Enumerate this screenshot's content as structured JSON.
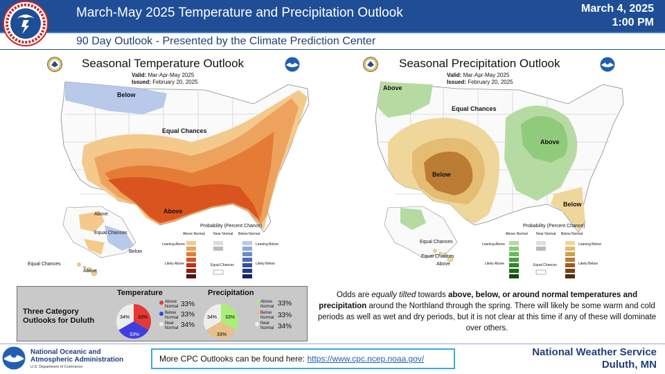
{
  "header": {
    "title": "March-May 2025 Temperature and Precipitation Outlook",
    "date": "March 4, 2025",
    "time": "1:00 PM",
    "subtitle": "90 Day Outlook - Presented by the Climate Prediction Center",
    "logo_icon": "nws-logo-icon"
  },
  "temp_map": {
    "title": "Seasonal Temperature Outlook",
    "valid_label": "Valid:",
    "valid_value": "Mar-Apr-May 2025",
    "issued_label": "Issued:",
    "issued_value": "February 20, 2025",
    "labels": {
      "below": "Below",
      "equal_chances": "Equal Chances",
      "above": "Above",
      "above_ak": "Above",
      "equal_ak": "Equal Chances",
      "below_ak": "Below",
      "equal_hi": "Equal Chances",
      "above_hi": "Above"
    },
    "legend": {
      "title": "Probability (Percent Chance)",
      "above_head": "Above Normal",
      "near_head": "Near Normal",
      "below_head": "Below Normal",
      "leaning_above": "Leaning Above",
      "likely_above": "Likely Above",
      "leaning_below": "Leaning Below",
      "likely_below": "Likely Below",
      "equal_chances": "Equal Chances"
    },
    "colors": {
      "above": [
        "#f4c98c",
        "#eda35e",
        "#e47c35",
        "#d9541f",
        "#b8341a",
        "#8a1f10",
        "#5c0f08"
      ],
      "below": [
        "#b8c9ea",
        "#8ea9dc",
        "#6c8ccd",
        "#4a6dbd",
        "#3450a0",
        "#233885",
        "#15246a"
      ]
    }
  },
  "precip_map": {
    "title": "Seasonal Precipitation Outlook",
    "valid_label": "Valid:",
    "valid_value": "Mar-Apr-May 2025",
    "issued_label": "Issued:",
    "issued_value": "February 20, 2025",
    "labels": {
      "above_nw": "Above",
      "equal_chances": "Equal Chances",
      "above_ne": "Above",
      "below_sw": "Below",
      "below_se": "Below",
      "equal_ak": "Equal Chances",
      "equal_hi": "Equal Chances",
      "above_hi": "Above"
    },
    "legend": {
      "title": "Probability (Percent Chance)",
      "above_head": "Above Normal",
      "near_head": "Near Normal",
      "below_head": "Below Normal",
      "leaning_above": "Leaning Above",
      "likely_above": "Likely Above",
      "leaning_below": "Leaning Below",
      "likely_below": "Likely Below",
      "equal_chances": "Equal Chances"
    },
    "colors": {
      "above": [
        "#b5dba3",
        "#8fcb7b",
        "#6bb95a",
        "#4aa13e",
        "#2f862a",
        "#1c6a1c",
        "#0e4d10"
      ],
      "below": [
        "#efd69a",
        "#e4bc72",
        "#d39e4f",
        "#bb7c34",
        "#9a5e21",
        "#774415",
        "#532c0c"
      ]
    }
  },
  "bottom_box": {
    "title": "Three Category Outlooks for Duluth",
    "temperature": {
      "title": "Temperature",
      "rows": [
        {
          "label": "Above Normal",
          "pct": "33%",
          "color": "#e53935"
        },
        {
          "label": "Below Normal",
          "pct": "33%",
          "color": "#3f3fe0"
        },
        {
          "label": "Near Normal",
          "pct": "34%",
          "color": "#eeeeee"
        }
      ]
    },
    "precipitation": {
      "title": "Precipitation",
      "rows": [
        {
          "label": "Above Normal",
          "pct": "33%",
          "color": "#a8f07a"
        },
        {
          "label": "Below Normal",
          "pct": "33%",
          "color": "#e8c08a"
        },
        {
          "label": "Near Normal",
          "pct": "34%",
          "color": "#eeeeee"
        }
      ]
    }
  },
  "description": {
    "p1": "Odds are ",
    "p2": "equally tilted",
    "p3": " towards ",
    "p4": "above, below, or around normal temperatures and precipitation",
    "p5": " around the Northland through the spring. There will likely be some warm and cold periods as well as wet and dry periods, but it is not clear at this time if any of these will dominate over others."
  },
  "footer": {
    "noaa_line1": "National Oceanic and",
    "noaa_line2": "Atmospheric Administration",
    "noaa_dept": "U.S. Department of Commerce",
    "link_prefix": "More CPC Outlooks can be found here: ",
    "link_url": "https://www.cpc.ncep.noaa.gov/",
    "nws_line1": "National Weather Service",
    "nws_line2": "Duluth, MN"
  }
}
